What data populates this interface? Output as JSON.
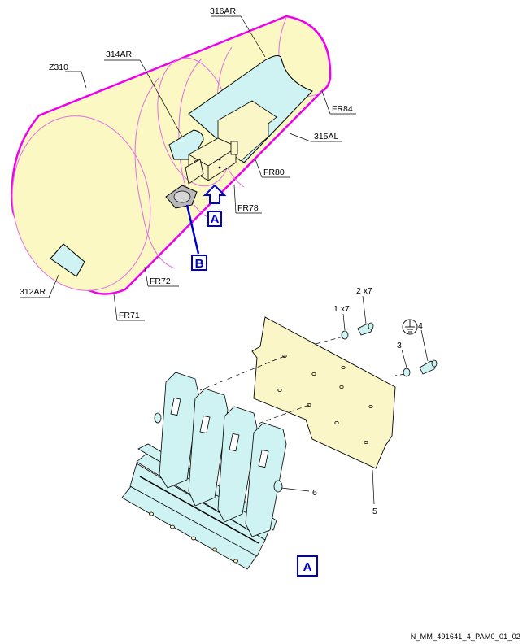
{
  "colors": {
    "fuselage_fill": "#fbf8c4",
    "fuselage_outline": "#ee00ee",
    "frame_lines": "#e070e0",
    "panel_fill": "#cff3f3",
    "bracket_fill": "#fbf6c8",
    "callout_blue": "#0000cc",
    "part_outline": "#000000"
  },
  "zone_labels": {
    "z310": "Z310",
    "r312ar": "312AR",
    "r314ar": "314AR",
    "r316ar": "316AR",
    "r315al": "315AL"
  },
  "frame_labels": {
    "fr71": "FR71",
    "fr72": "FR72",
    "fr78": "FR78",
    "fr80": "FR80",
    "fr84": "FR84"
  },
  "view_callouts": {
    "arrow_a": "A",
    "detail_b": "B",
    "view_a_title": "A"
  },
  "item_callouts": {
    "item1": "1 x7",
    "item2": "2 x7",
    "item3": "3",
    "item4": "4",
    "item5": "5",
    "item6": "6"
  },
  "icons": {
    "ground_symbol": "ground-symbol-icon"
  },
  "document_reference": "N_MM_491641_4_PAM0_01_02"
}
